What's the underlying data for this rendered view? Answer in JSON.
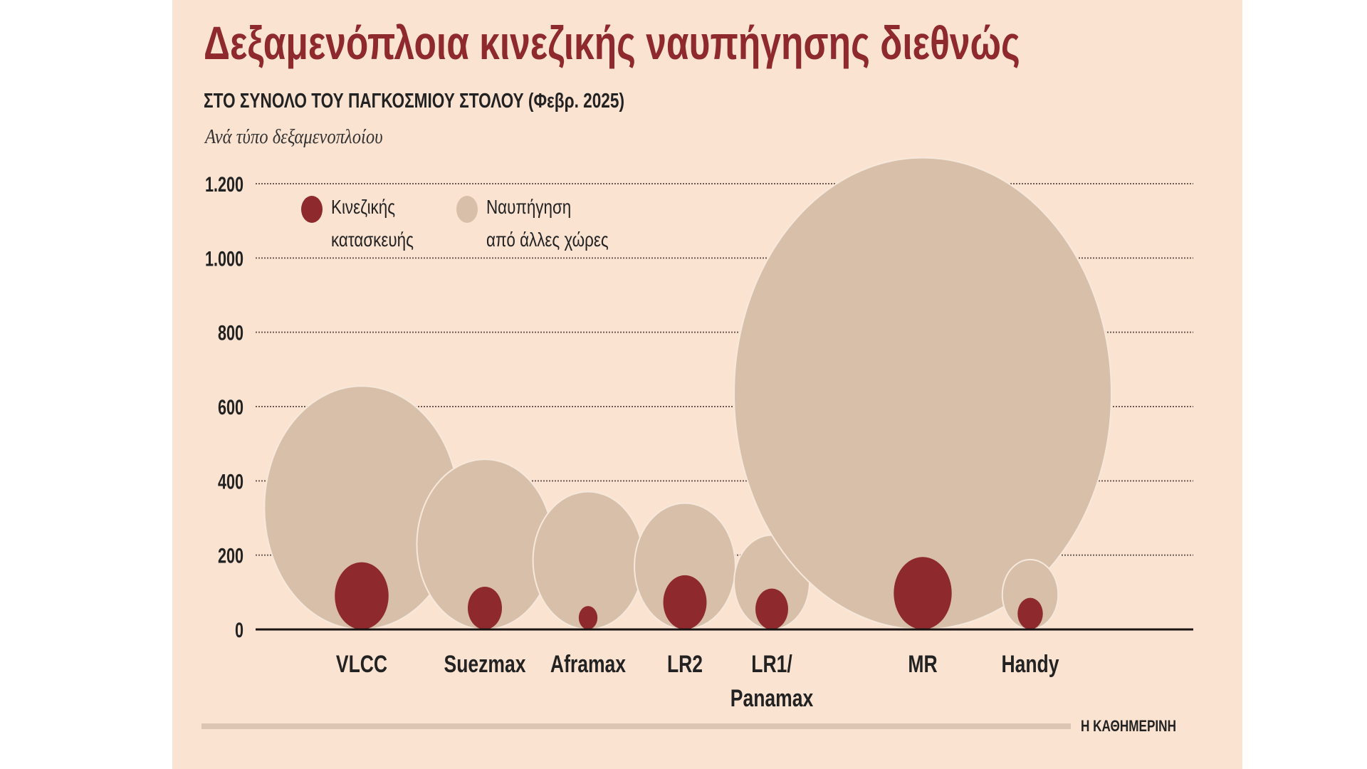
{
  "title": "Δεξαμενόπλοια κινεζικής ναυπήγησης διεθνώς",
  "subtitle": "ΣΤΟ ΣΥΝΟΛΟ ΤΟΥ ΠΑΓΚΟΣΜΙΟΥ ΣΤΟΛΟΥ (Φεβρ. 2025)",
  "subnote": "Ανά τύπο δεξαμενοπλοίου",
  "legend": {
    "chinese": [
      "Κινεζικής",
      "κατασκευής"
    ],
    "other": [
      "Ναυπήγηση",
      "από άλλες χώρες"
    ]
  },
  "logo": "Η ΚΑΘΗΜΕΡΙΝΗ",
  "colors": {
    "chinese": "#8e2a2e",
    "other": "#d8bfa9",
    "background": "#fbe3d2"
  },
  "chart_data": {
    "type": "bubble",
    "title": "Δεξαμενόπλοια κινεζικής ναυπήγησης διεθνώς",
    "categories": [
      "VLCC",
      "Suezmax",
      "Aframax",
      "LR2",
      "LR1/ Panamax",
      "MR",
      "Handy"
    ],
    "category_labels": [
      [
        "VLCC"
      ],
      [
        "Suezmax"
      ],
      [
        "Aframax"
      ],
      [
        "LR2"
      ],
      [
        "LR1/",
        "Panamax"
      ],
      [
        "MR"
      ],
      [
        "Handy"
      ]
    ],
    "series": [
      {
        "name": "Ναυπήγηση από άλλες χώρες",
        "values": [
          655,
          458,
          371,
          340,
          254,
          1270,
          188
        ]
      },
      {
        "name": "Κινεζικής κατασκευής",
        "values": [
          181,
          115,
          63,
          146,
          110,
          195,
          85
        ]
      }
    ],
    "ylim": [
      0,
      1200
    ],
    "yticks": [
      0,
      200,
      400,
      600,
      800,
      1000,
      1200
    ],
    "ytick_labels": [
      "0",
      "200",
      "400",
      "600",
      "800",
      "1.000",
      "1.200"
    ],
    "grid": true,
    "legend_position": "top-left"
  }
}
